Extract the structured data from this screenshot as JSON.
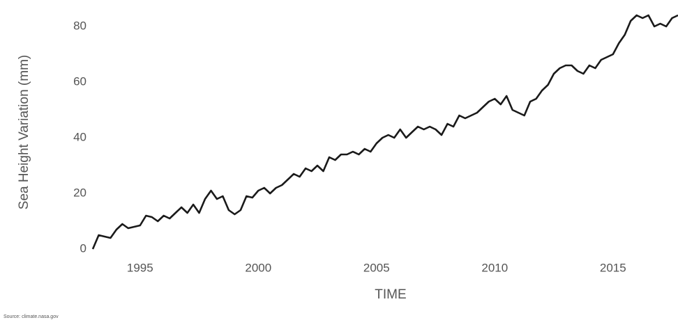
{
  "chart_data": {
    "type": "line",
    "y_label": "Sea Height Variation (mm)",
    "x_label": "TIME",
    "source": "Source: climate.nasa.gov",
    "color": "#1a1a1a",
    "x": [
      1993.0,
      1993.25,
      1993.5,
      1993.75,
      1994.0,
      1994.25,
      1994.5,
      1994.75,
      1995.0,
      1995.25,
      1995.5,
      1995.75,
      1996.0,
      1996.25,
      1996.5,
      1996.75,
      1997.0,
      1997.25,
      1997.5,
      1997.75,
      1998.0,
      1998.25,
      1998.5,
      1998.75,
      1999.0,
      1999.25,
      1999.5,
      1999.75,
      2000.0,
      2000.25,
      2000.5,
      2000.75,
      2001.0,
      2001.25,
      2001.5,
      2001.75,
      2002.0,
      2002.25,
      2002.5,
      2002.75,
      2003.0,
      2003.25,
      2003.5,
      2003.75,
      2004.0,
      2004.25,
      2004.5,
      2004.75,
      2005.0,
      2005.25,
      2005.5,
      2005.75,
      2006.0,
      2006.25,
      2006.5,
      2006.75,
      2007.0,
      2007.25,
      2007.5,
      2007.75,
      2008.0,
      2008.25,
      2008.5,
      2008.75,
      2009.0,
      2009.25,
      2009.5,
      2009.75,
      2010.0,
      2010.25,
      2010.5,
      2010.75,
      2011.0,
      2011.25,
      2011.5,
      2011.75,
      2012.0,
      2012.25,
      2012.5,
      2012.75,
      2013.0,
      2013.25,
      2013.5,
      2013.75,
      2014.0,
      2014.25,
      2014.5,
      2014.75,
      2015.0,
      2015.25,
      2015.5,
      2015.75,
      2016.0,
      2016.25,
      2016.5,
      2016.75,
      2017.0,
      2017.25,
      2017.5,
      2017.75
    ],
    "values": [
      0,
      5,
      4.5,
      4,
      7,
      9,
      7.5,
      8,
      8.5,
      12,
      11.5,
      10,
      12,
      11,
      13,
      15,
      13,
      16,
      13,
      18,
      21,
      18,
      19,
      14,
      12.5,
      14,
      19,
      18.5,
      21,
      22,
      20,
      22,
      23,
      25,
      27,
      26,
      29,
      28,
      30,
      28,
      33,
      32,
      34,
      34,
      35,
      34,
      36,
      35,
      38,
      40,
      41,
      40,
      43,
      40,
      42,
      44,
      43,
      44,
      43,
      41,
      45,
      44,
      48,
      47,
      48,
      49,
      51,
      53,
      54,
      52,
      55,
      50,
      49,
      48,
      53,
      54,
      57,
      59,
      63,
      65,
      66,
      66,
      64,
      63,
      66,
      65,
      68,
      69,
      70,
      74,
      77,
      82,
      84,
      83,
      84,
      80,
      81,
      80,
      83,
      84
    ],
    "xlim": [
      1993,
      2017.75
    ],
    "ylim": [
      -2,
      86
    ],
    "xticks": [
      1995,
      2000,
      2005,
      2010,
      2015
    ],
    "yticks": [
      0,
      20,
      40,
      60,
      80
    ],
    "grid": false
  }
}
